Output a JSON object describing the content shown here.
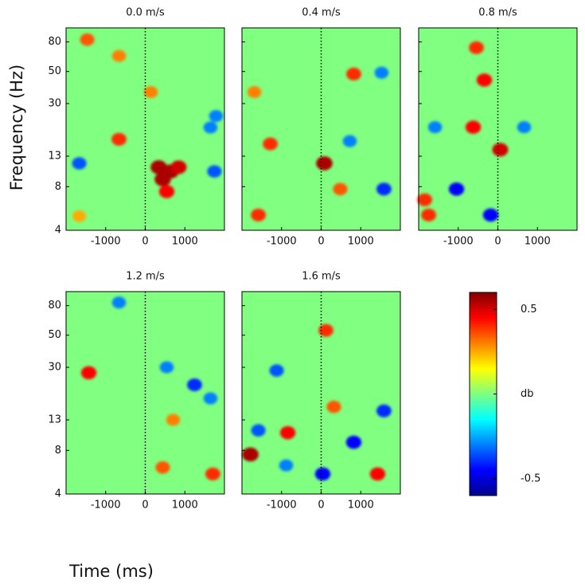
{
  "chart_data": [
    {
      "type": "heatmap",
      "title": "0.0 m/s",
      "xlim": [
        -2000,
        2000
      ],
      "xticks": [
        -1000,
        0,
        1000
      ],
      "ylim": [
        4,
        100
      ],
      "yticks": [
        4,
        8,
        13,
        30,
        50,
        80
      ],
      "log_y": true,
      "event_line": 0,
      "blobs": [
        {
          "time": 341,
          "freq": 10.9,
          "value": 0.55
        },
        {
          "time": 643,
          "freq": 10.2,
          "value": 0.55
        },
        {
          "time": 843,
          "freq": 10.9,
          "value": 0.5
        },
        {
          "time": 442,
          "freq": 9.0,
          "value": 0.55
        },
        {
          "time": 542,
          "freq": 7.4,
          "value": 0.45
        },
        {
          "time": -663,
          "freq": 17.0,
          "value": 0.4
        },
        {
          "time": -1667,
          "freq": 11.6,
          "value": -0.35
        },
        {
          "time": 1747,
          "freq": 10.2,
          "value": -0.35
        },
        {
          "time": 1787,
          "freq": 24.6,
          "value": -0.3
        },
        {
          "time": 1647,
          "freq": 20.5,
          "value": -0.3
        },
        {
          "time": -1667,
          "freq": 5.0,
          "value": 0.25
        },
        {
          "time": -1466,
          "freq": 83,
          "value": 0.35
        },
        {
          "time": -663,
          "freq": 64,
          "value": 0.3
        },
        {
          "time": 140,
          "freq": 36,
          "value": 0.3
        }
      ]
    },
    {
      "type": "heatmap",
      "title": "0.4 m/s",
      "xlim": [
        -2000,
        2000
      ],
      "xticks": [
        -1000,
        0,
        1000
      ],
      "ylim": [
        4,
        100
      ],
      "yticks": [
        4,
        8,
        13,
        30,
        50,
        80
      ],
      "log_y": true,
      "event_line": 0,
      "blobs": [
        {
          "time": 80,
          "freq": 11.6,
          "value": 0.55
        },
        {
          "time": -1285,
          "freq": 15.8,
          "value": 0.4
        },
        {
          "time": -1586,
          "freq": 5.1,
          "value": 0.4
        },
        {
          "time": 482,
          "freq": 7.7,
          "value": 0.35
        },
        {
          "time": 1586,
          "freq": 7.7,
          "value": -0.4
        },
        {
          "time": 723,
          "freq": 16.5,
          "value": -0.3
        },
        {
          "time": 1526,
          "freq": 49,
          "value": -0.3
        },
        {
          "time": 823,
          "freq": 48,
          "value": 0.4
        },
        {
          "time": -1687,
          "freq": 36,
          "value": 0.3
        }
      ]
    },
    {
      "type": "heatmap",
      "title": "0.8 m/s",
      "xlim": [
        -2000,
        2000
      ],
      "xticks": [
        -1000,
        0,
        1000
      ],
      "ylim": [
        4,
        100
      ],
      "yticks": [
        4,
        8,
        13,
        30,
        50,
        80
      ],
      "log_y": true,
      "event_line": 0,
      "blobs": [
        {
          "time": 60,
          "freq": 14.4,
          "value": 0.5
        },
        {
          "time": -622,
          "freq": 20.6,
          "value": 0.45
        },
        {
          "time": -341,
          "freq": 43.6,
          "value": 0.45
        },
        {
          "time": -1044,
          "freq": 7.7,
          "value": -0.45
        },
        {
          "time": -181,
          "freq": 5.1,
          "value": -0.45
        },
        {
          "time": -1847,
          "freq": 6.5,
          "value": 0.4
        },
        {
          "time": -1747,
          "freq": 5.1,
          "value": 0.4
        },
        {
          "time": 663,
          "freq": 20.6,
          "value": -0.3
        },
        {
          "time": -1586,
          "freq": 20.6,
          "value": -0.3
        },
        {
          "time": -542,
          "freq": 73,
          "value": 0.4
        }
      ]
    },
    {
      "type": "heatmap",
      "title": "1.2 m/s",
      "xlim": [
        -2000,
        2000
      ],
      "xticks": [
        -1000,
        0,
        1000
      ],
      "ylim": [
        4,
        100
      ],
      "yticks": [
        4,
        8,
        13,
        30,
        50,
        80
      ],
      "log_y": true,
      "event_line": 0,
      "blobs": [
        {
          "time": -1426,
          "freq": 27.5,
          "value": 0.45
        },
        {
          "time": 1245,
          "freq": 22.7,
          "value": -0.4
        },
        {
          "time": 1647,
          "freq": 18.3,
          "value": -0.3
        },
        {
          "time": 1707,
          "freq": 5.5,
          "value": 0.4
        },
        {
          "time": 442,
          "freq": 6.1,
          "value": 0.35
        },
        {
          "time": 703,
          "freq": 13.0,
          "value": 0.3
        },
        {
          "time": 542,
          "freq": 30,
          "value": -0.3
        },
        {
          "time": -663,
          "freq": 84,
          "value": -0.3
        }
      ]
    },
    {
      "type": "heatmap",
      "title": "1.6 m/s",
      "xlim": [
        -2000,
        2000
      ],
      "xticks": [
        -1000,
        0,
        1000
      ],
      "ylim": [
        4,
        100
      ],
      "yticks": [
        4,
        8,
        13,
        30,
        50,
        80
      ],
      "log_y": true,
      "event_line": 0,
      "blobs": [
        {
          "time": -1787,
          "freq": 7.5,
          "value": 0.55
        },
        {
          "time": 40,
          "freq": 5.5,
          "value": -0.45
        },
        {
          "time": 823,
          "freq": 9.1,
          "value": -0.45
        },
        {
          "time": 1426,
          "freq": 5.5,
          "value": 0.45
        },
        {
          "time": -843,
          "freq": 10.6,
          "value": 0.45
        },
        {
          "time": 1586,
          "freq": 15.0,
          "value": -0.4
        },
        {
          "time": -1586,
          "freq": 11.0,
          "value": -0.35
        },
        {
          "time": -884,
          "freq": 6.3,
          "value": -0.3
        },
        {
          "time": -1124,
          "freq": 28.5,
          "value": -0.35
        },
        {
          "time": 321,
          "freq": 16.0,
          "value": 0.35
        },
        {
          "time": 120,
          "freq": 54,
          "value": 0.4
        }
      ]
    },
    {
      "type": "colorbar",
      "clim": [
        -0.6,
        0.6
      ],
      "ticks": [
        0.5,
        {
          "value": 0,
          "label": "db"
        },
        -0.5
      ],
      "colormap": "jet",
      "xlabel": "Time (ms)",
      "ylabel": "Frequency (Hz)"
    }
  ]
}
